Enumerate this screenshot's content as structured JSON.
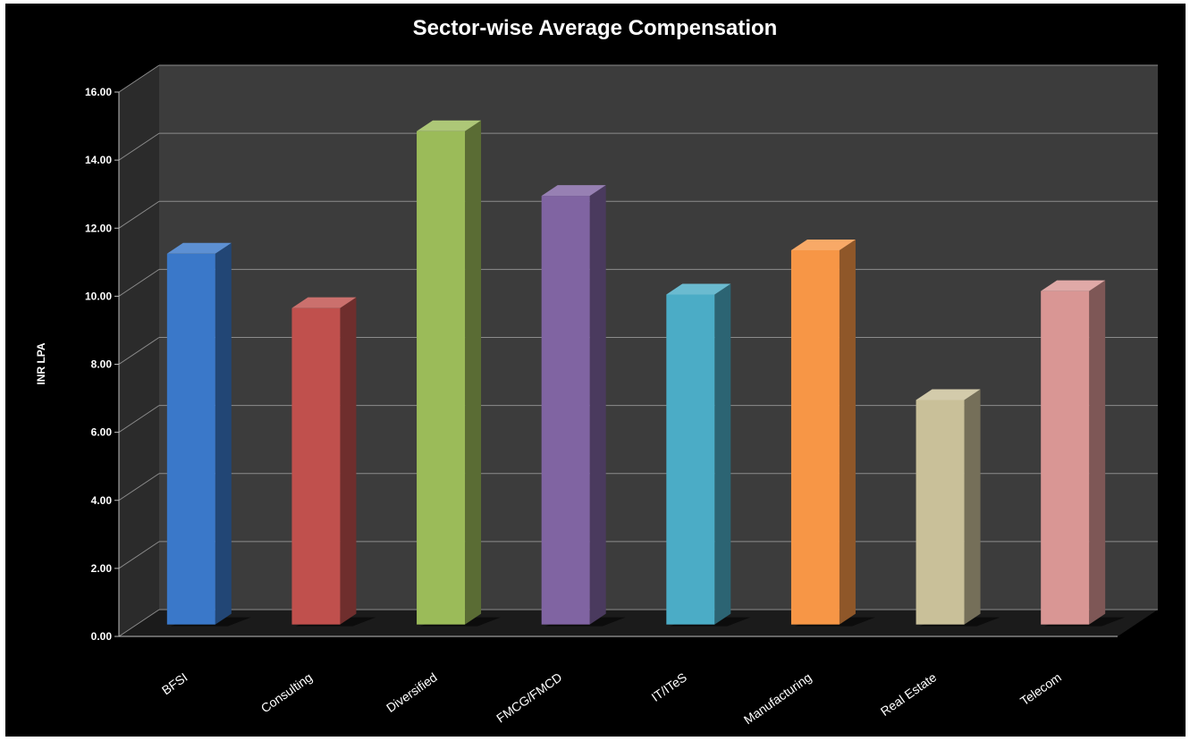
{
  "chart_data": {
    "type": "bar",
    "title": "Sector-wise Average Compensation",
    "xlabel": "",
    "ylabel": "INR LPA",
    "ylim": [
      0,
      16
    ],
    "yticks": [
      "0.00",
      "2.00",
      "4.00",
      "6.00",
      "8.00",
      "10.00",
      "12.00",
      "14.00",
      "16.00"
    ],
    "grid": true,
    "legend": "none",
    "style": "3d-column",
    "categories": [
      "BFSI",
      "Consulting",
      "Diversified",
      "FMCG/FMCD",
      "IT/ITeS",
      "Manufacturing",
      "Real Estate",
      "Telecom"
    ],
    "values": [
      10.9,
      9.3,
      14.5,
      12.6,
      9.7,
      11.0,
      6.6,
      9.8
    ],
    "colors": [
      "#3a78c9",
      "#c0504d",
      "#9bbb59",
      "#8064a2",
      "#4bacc6",
      "#f79646",
      "#c9c099",
      "#d99694"
    ]
  }
}
